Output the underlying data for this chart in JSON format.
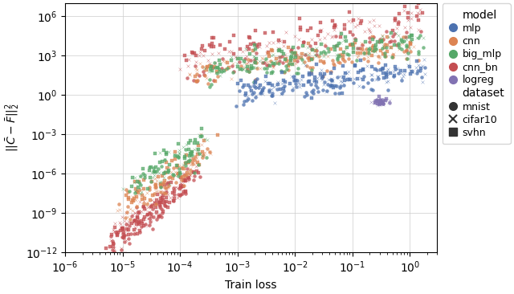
{
  "xlabel": "Train loss",
  "ylabel": "$||\\bar{C} - \\bar{F}||_2^2$",
  "xlim": [
    1e-06,
    3
  ],
  "ylim": [
    1e-12,
    10000000.0
  ],
  "model_colors": {
    "mlp": "#4C72B0",
    "cnn": "#DD8452",
    "big_mlp": "#55A868",
    "cnn_bn": "#C44E52",
    "logreg": "#8172B2"
  },
  "dataset_markers": {
    "mnist": "o",
    "cifar10": "x",
    "svhn": "s"
  },
  "legend_model_title": "model",
  "legend_dataset_title": "dataset",
  "point_size": 8,
  "alpha": 0.75,
  "seed": 0
}
